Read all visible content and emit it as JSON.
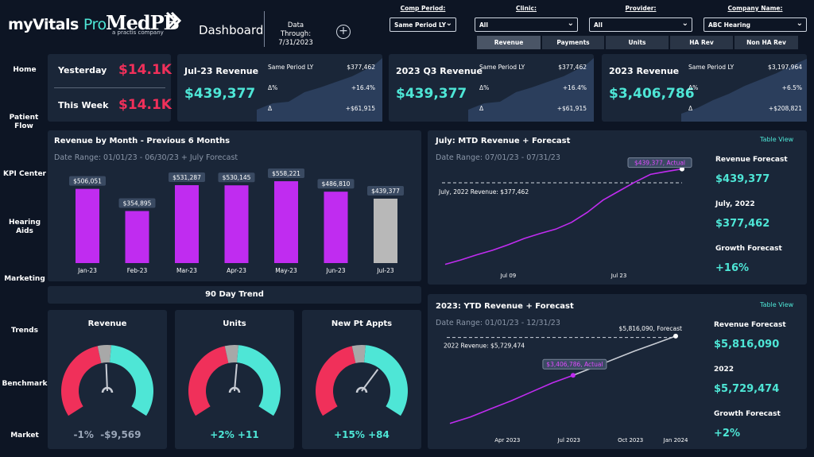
{
  "header": {
    "logo_text": "myVitals",
    "logo_pro": "Pro",
    "brand": "MedPB",
    "brand_sub": "a practis company",
    "title": "Dashboard",
    "data_through_label": "Data Through:",
    "data_through_date": "7/31/2023",
    "filters": [
      {
        "label": "Comp Period:",
        "value": "Same Period LY"
      },
      {
        "label": "Clinic:",
        "value": "All"
      },
      {
        "label": "Provider:",
        "value": "All"
      },
      {
        "label": "Company Name:",
        "value": "ABC Hearing"
      }
    ],
    "tabs": [
      "Revenue",
      "Payments",
      "Units",
      "HA Rev",
      "Non HA Rev"
    ]
  },
  "sidebar": {
    "items": [
      "Home",
      "Patient Flow",
      "KPI Center",
      "Hearing Aids",
      "Marketing",
      "Trends",
      "Benchmark",
      "Market"
    ]
  },
  "kpi": {
    "yesterday_label": "Yesterday",
    "yesterday_value": "$14.1K",
    "week_label": "This Week",
    "week_value": "$14.1K",
    "cards": [
      {
        "title": "Jul-23 Revenue",
        "value": "$439,377",
        "same_label": "Same Period LY",
        "same_value": "$377,462",
        "pct_label": "Δ%",
        "pct_value": "+16.4%",
        "delta_label": "Δ",
        "delta_value": "+$61,915"
      },
      {
        "title": "2023 Q3 Revenue",
        "value": "$439,377",
        "same_label": "Same Period LY",
        "same_value": "$377,462",
        "pct_label": "Δ%",
        "pct_value": "+16.4%",
        "delta_label": "Δ",
        "delta_value": "+$61,915"
      },
      {
        "title": "2023 Revenue",
        "value": "$3,406,786",
        "same_label": "Same Period LY",
        "same_value": "$3,197,964",
        "pct_label": "Δ%",
        "pct_value": "+6.5%",
        "delta_label": "Δ",
        "delta_value": "+$208,821"
      }
    ]
  },
  "rev_month": {
    "title": "Revenue by Month - Previous 6 Months",
    "date_range": "Date Range: 01/01/23 - 06/30/23 + July Forecast"
  },
  "mtd": {
    "title": "July: MTD Revenue + Forecast",
    "date_range": "Date Range: 07/01/23 - 07/31/23",
    "table_view": "Table View",
    "ref_label": "July, 2022 Revenue: $377,462",
    "actual_label": "$439,377, Actual",
    "ticks": [
      "Jul 09",
      "Jul 23"
    ],
    "side": [
      {
        "label": "Revenue Forecast",
        "value": "$439,377"
      },
      {
        "label": "July, 2022",
        "value": "$377,462"
      },
      {
        "label": "Growth Forecast",
        "value": "+16%"
      }
    ]
  },
  "ytd": {
    "title": "2023: YTD Revenue + Forecast",
    "date_range": "Date Range: 01/01/23 - 12/31/23",
    "table_view": "Table View",
    "ref_label": "2022 Revenue: $5,729,474",
    "forecast_label": "$5,816,090, Forecast",
    "actual_label": "$3,406,786, Actual",
    "ticks": [
      "Apr 2023",
      "Jul 2023",
      "Oct 2023",
      "Jan 2024"
    ],
    "side": [
      {
        "label": "Revenue Forecast",
        "value": "$5,816,090"
      },
      {
        "label": "2022",
        "value": "$5,729,474"
      },
      {
        "label": "Growth Forecast",
        "value": "+2%"
      }
    ]
  },
  "trend": {
    "title": "90 Day Trend",
    "gauges": [
      {
        "title": "Revenue",
        "pct": "-1%",
        "delta": "-$9,569",
        "level": 0.49
      },
      {
        "title": "Units",
        "pct": "+2%",
        "delta": "+11",
        "level": 0.52
      },
      {
        "title": "New Pt Appts",
        "pct": "+15%",
        "delta": "+84",
        "level": 0.65
      }
    ]
  },
  "colors": {
    "bar": "#c02cf0",
    "forecast_bar": "#b8b8b8",
    "teal": "#4ee6d6",
    "red": "#f0305a",
    "line": "#c02cf0"
  },
  "chart_data": [
    {
      "type": "bar",
      "title": "Revenue by Month - Previous 6 Months",
      "categories": [
        "Jan-23",
        "Feb-23",
        "Mar-23",
        "Apr-23",
        "May-23",
        "Jun-23",
        "Jul-23"
      ],
      "values": [
        506051,
        354895,
        531287,
        530145,
        558221,
        486810,
        439377
      ],
      "labels": [
        "$506,051",
        "$354,895",
        "$531,287",
        "$530,145",
        "$558,221",
        "$486,810",
        "$439,377"
      ],
      "forecast_index": 6,
      "ylim": [
        0,
        580000
      ]
    },
    {
      "type": "line",
      "title": "July: MTD Revenue + Forecast",
      "x": [
        1,
        3,
        5,
        7,
        9,
        11,
        13,
        15,
        17,
        19,
        21,
        23,
        25,
        27,
        29,
        31
      ],
      "values": [
        12000,
        32000,
        55000,
        75000,
        100000,
        128000,
        150000,
        170000,
        200000,
        245000,
        300000,
        340000,
        380000,
        415000,
        428000,
        439377
      ],
      "reference": 377462,
      "ylim": [
        0,
        470000
      ]
    },
    {
      "type": "line",
      "title": "2023: YTD Revenue + Forecast",
      "x": [
        1,
        2,
        3,
        4,
        5,
        6,
        7,
        8,
        9,
        10,
        11,
        12
      ],
      "actual": [
        450000,
        850000,
        1350000,
        1850000,
        2400000,
        2950000,
        3406786
      ],
      "forecast": [
        3406786,
        3900000,
        4400000,
        4900000,
        5350000,
        5816090
      ],
      "reference": 5729474,
      "ylim": [
        0,
        6200000
      ]
    }
  ]
}
